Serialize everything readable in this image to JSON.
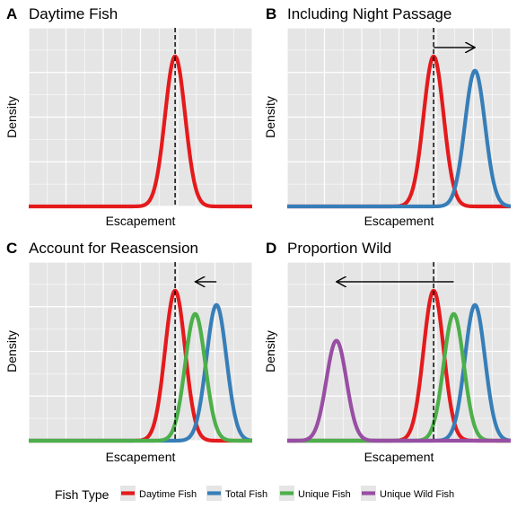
{
  "chart_data": [
    {
      "type": "line",
      "panel": "A",
      "title": "Daytime Fish",
      "xlabel": "Escapement",
      "ylabel": "Density",
      "xlim": [
        0,
        1
      ],
      "ylim": [
        0,
        1
      ],
      "vline_x": 0.655,
      "arrow": null,
      "series": [
        {
          "name": "Daytime Fish",
          "color": "#E41A1C",
          "mean": 0.655,
          "sd": 0.045,
          "peak": 0.84
        }
      ]
    },
    {
      "type": "line",
      "panel": "B",
      "title": "Including Night Passage",
      "xlabel": "Escapement",
      "ylabel": "Density",
      "xlim": [
        0,
        1
      ],
      "ylim": [
        0,
        1
      ],
      "vline_x": 0.655,
      "arrow": {
        "from": 0.655,
        "to": 0.84,
        "y": 0.89
      },
      "series": [
        {
          "name": "Daytime Fish",
          "color": "#E41A1C",
          "mean": 0.655,
          "sd": 0.045,
          "peak": 0.84
        },
        {
          "name": "Total Fish",
          "color": "#377EB8",
          "mean": 0.84,
          "sd": 0.045,
          "peak": 0.76
        }
      ]
    },
    {
      "type": "line",
      "panel": "C",
      "title": "Account for Reascension",
      "xlabel": "Escapement",
      "ylabel": "Density",
      "xlim": [
        0,
        1
      ],
      "ylim": [
        0,
        1
      ],
      "vline_x": 0.655,
      "arrow": {
        "from": 0.84,
        "to": 0.745,
        "y": 0.89
      },
      "series": [
        {
          "name": "Daytime Fish",
          "color": "#E41A1C",
          "mean": 0.655,
          "sd": 0.045,
          "peak": 0.84
        },
        {
          "name": "Total Fish",
          "color": "#377EB8",
          "mean": 0.84,
          "sd": 0.045,
          "peak": 0.76
        },
        {
          "name": "Unique Fish",
          "color": "#4DAF4A",
          "mean": 0.745,
          "sd": 0.045,
          "peak": 0.71
        }
      ]
    },
    {
      "type": "line",
      "panel": "D",
      "title": "Proportion Wild",
      "xlabel": "Escapement",
      "ylabel": "Density",
      "xlim": [
        0,
        1
      ],
      "ylim": [
        0,
        1
      ],
      "vline_x": 0.655,
      "arrow": {
        "from": 0.745,
        "to": 0.22,
        "y": 0.89
      },
      "series": [
        {
          "name": "Daytime Fish",
          "color": "#E41A1C",
          "mean": 0.655,
          "sd": 0.045,
          "peak": 0.84
        },
        {
          "name": "Total Fish",
          "color": "#377EB8",
          "mean": 0.84,
          "sd": 0.045,
          "peak": 0.76
        },
        {
          "name": "Unique Fish",
          "color": "#4DAF4A",
          "mean": 0.745,
          "sd": 0.045,
          "peak": 0.71
        },
        {
          "name": "Unique Wild Fish",
          "color": "#984EA3",
          "mean": 0.22,
          "sd": 0.045,
          "peak": 0.56
        }
      ]
    }
  ],
  "legend": {
    "title": "Fish Type",
    "items": [
      {
        "label": "Daytime Fish",
        "color": "#E41A1C"
      },
      {
        "label": "Total Fish",
        "color": "#377EB8"
      },
      {
        "label": "Unique Fish",
        "color": "#4DAF4A"
      },
      {
        "label": "Unique Wild Fish",
        "color": "#984EA3"
      }
    ]
  }
}
